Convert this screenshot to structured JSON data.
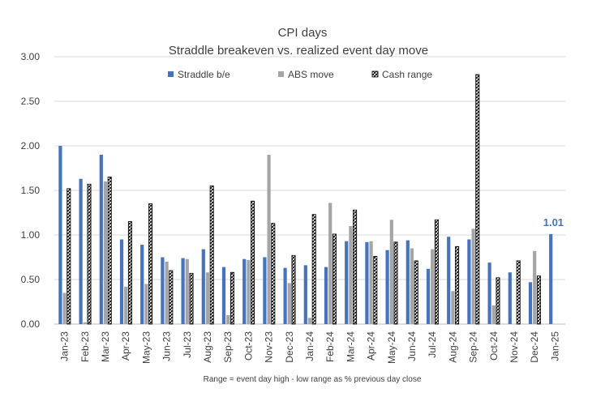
{
  "chart_data": {
    "type": "bar",
    "title": "CPI days",
    "subtitle": "Straddle breakeven vs. realized event day move",
    "footnote": "Range = event day high - low range as % previous day close",
    "ylim": [
      0,
      3.0
    ],
    "yticks": [
      "0.00",
      "0.50",
      "1.00",
      "1.50",
      "2.00",
      "2.50",
      "3.00"
    ],
    "grid": true,
    "legend_position": "top",
    "categories": [
      "Jan-23",
      "Feb-23",
      "Mar-23",
      "Apr-23",
      "May-23",
      "Jun-23",
      "Jul-23",
      "Aug-23",
      "Sep-23",
      "Oct-23",
      "Nov-23",
      "Dec-23",
      "Jan-24",
      "Feb-24",
      "Mar-24",
      "Apr-24",
      "May-24",
      "Jun-24",
      "Jul-24",
      "Aug-24",
      "Sep-24",
      "Oct-24",
      "Nov-24",
      "Dec-24",
      "Jan-25"
    ],
    "series": [
      {
        "name": "Straddle b/e",
        "color": "#4472C4",
        "values": [
          2.0,
          1.63,
          1.9,
          0.95,
          0.89,
          0.75,
          0.74,
          0.84,
          0.64,
          0.73,
          0.75,
          0.63,
          0.66,
          0.64,
          0.93,
          0.92,
          0.83,
          0.94,
          0.62,
          0.98,
          0.95,
          0.69,
          0.58,
          0.47,
          1.01
        ]
      },
      {
        "name": "ABS move",
        "color": "#A5A5A5",
        "values": [
          0.35,
          0.02,
          1.6,
          0.42,
          0.45,
          0.7,
          0.73,
          0.58,
          0.1,
          0.72,
          1.9,
          0.46,
          0.07,
          1.36,
          1.1,
          0.93,
          1.17,
          0.85,
          0.84,
          0.37,
          1.07,
          0.21,
          null,
          0.82,
          null
        ]
      },
      {
        "name": "Cash range",
        "color": "#000000",
        "values": [
          1.52,
          1.57,
          1.65,
          1.15,
          1.35,
          0.6,
          0.57,
          1.55,
          0.58,
          1.38,
          1.13,
          0.77,
          1.23,
          1.01,
          1.28,
          0.76,
          0.92,
          0.71,
          1.17,
          0.87,
          2.8,
          0.52,
          0.71,
          0.54,
          null
        ]
      }
    ],
    "annotations": [
      {
        "category": "Jan-25",
        "text": "1.01"
      }
    ]
  }
}
